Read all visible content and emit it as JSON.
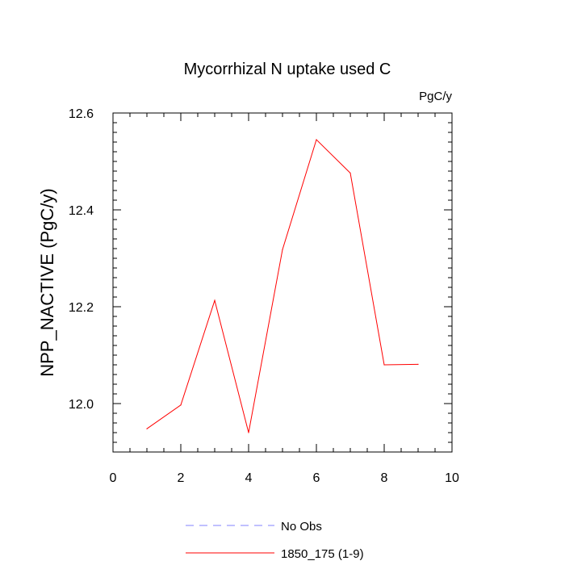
{
  "chart_data": {
    "type": "line",
    "title": "Mycorrhizal N uptake used C",
    "units_label": "PgC/y",
    "xlabel": "",
    "ylabel": "NPP_NACTIVE  (PgC/y)",
    "xlim": [
      0,
      10
    ],
    "ylim": [
      11.9,
      12.6
    ],
    "x_ticks": [
      0,
      2,
      4,
      6,
      8,
      10
    ],
    "x_tick_labels": [
      "0",
      "2",
      "4",
      "6",
      "8",
      "10"
    ],
    "y_ticks": [
      12.0,
      12.2,
      12.4,
      12.6
    ],
    "y_tick_labels": [
      "12.0",
      "12.2",
      "12.4",
      "12.6"
    ],
    "grid": false,
    "legend_position": "bottom-center",
    "series": [
      {
        "name": "No Obs",
        "color": "#8080ff",
        "dash": "dashed",
        "x": [],
        "y": []
      },
      {
        "name": "1850_175 (1-9)",
        "color": "#ff0000",
        "dash": "solid",
        "x": [
          1,
          2,
          3,
          4,
          5,
          6,
          7,
          8,
          9
        ],
        "y": [
          11.948,
          11.997,
          12.213,
          11.94,
          12.318,
          12.545,
          12.476,
          12.08,
          12.081
        ]
      }
    ]
  }
}
